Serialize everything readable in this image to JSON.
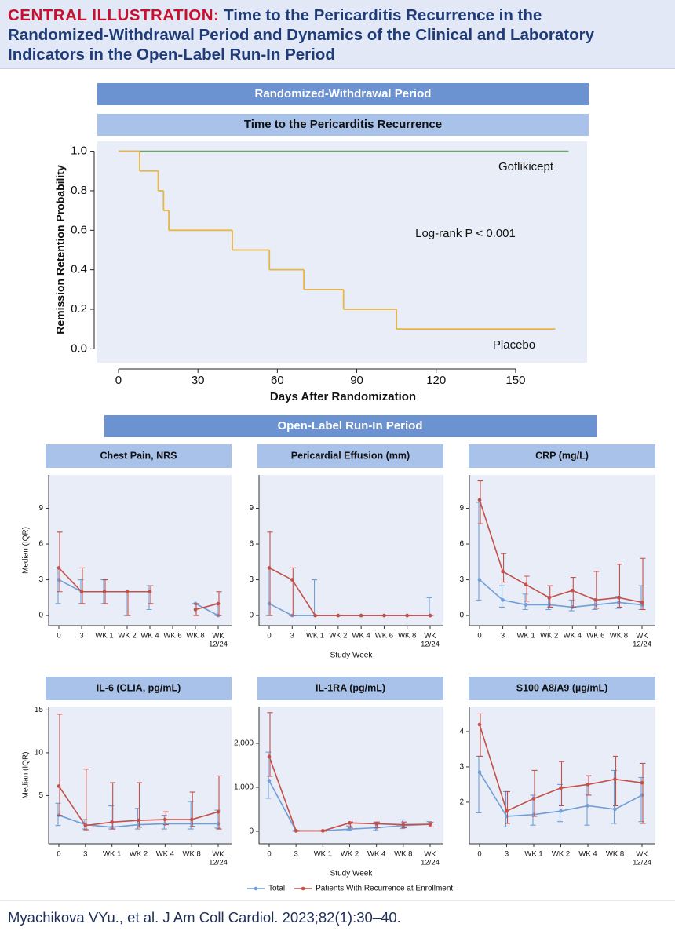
{
  "header": {
    "label": "CENTRAL ILLUSTRATION:",
    "title": "Time to the Pericarditis Recurrence in the Randomized-Withdrawal Period and Dynamics of the Clinical and Laboratory Indicators in the Open-Label Run-In Period"
  },
  "sections": [
    "Randomized-Withdrawal Period",
    "Open-Label Run-In Period"
  ],
  "citation": "Myachikova VYu., et al. J Am Coll Cardiol. 2023;82(1):30–40.",
  "chart_data": [
    {
      "type": "step",
      "title": "Time to the Pericarditis Recurrence",
      "x_label": "Days After Randomization",
      "y_label": "Remission Retention Probability",
      "annotation": "Log-rank P < 0.001",
      "xlim": [
        -8,
        177
      ],
      "xticks": [
        0,
        30,
        60,
        90,
        120,
        150
      ],
      "ylim": [
        -0.07,
        1.05
      ],
      "yticks": [
        {
          "value": 0,
          "label": "0.0"
        },
        {
          "value": 0.2,
          "label": "0.2"
        },
        {
          "value": 0.4,
          "label": "0.4"
        },
        {
          "value": 0.6,
          "label": "0.6"
        },
        {
          "value": 0.8,
          "label": "0.8"
        },
        {
          "value": 1,
          "label": "1.0"
        }
      ],
      "series": [
        {
          "name": "Goflikicept",
          "color": "#6aa86a",
          "x": [
            0,
            170
          ],
          "values": [
            1,
            1
          ]
        },
        {
          "name": "Placebo",
          "color": "#e8b547",
          "x": [
            0,
            8,
            15,
            17,
            19,
            43,
            57,
            70,
            85,
            105,
            165
          ],
          "values": [
            1,
            0.9,
            0.8,
            0.7,
            0.6,
            0.5,
            0.4,
            0.3,
            0.2,
            0.1,
            0.1
          ]
        }
      ]
    },
    {
      "type": "line",
      "title": "Chest Pain, NRS",
      "y_label": "Median (IQR)",
      "categories": [
        "0",
        "3",
        "WK 1",
        "WK 2",
        "WK 4",
        "WK 6",
        "WK 8",
        "WK 12/24"
      ],
      "ylim": [
        -0.85,
        11.8
      ],
      "yticks": [
        0,
        3,
        6,
        9
      ],
      "series": [
        {
          "name": "Total",
          "color": "#6f9fd6",
          "values": [
            3,
            2,
            2,
            2,
            2,
            null,
            1,
            0
          ],
          "lower": [
            1,
            1,
            1,
            0,
            0.5,
            null,
            1,
            0
          ],
          "upper": [
            4,
            3,
            3,
            2,
            2.5,
            null,
            1,
            1
          ]
        },
        {
          "name": "Patients With Recurrence at Enrollment",
          "color": "#c4504a",
          "values": [
            4,
            2,
            2,
            2,
            2,
            null,
            0.5,
            1
          ],
          "lower": [
            2,
            1,
            1,
            0,
            1,
            null,
            0,
            0
          ],
          "upper": [
            7,
            4,
            3,
            2,
            2.5,
            null,
            1,
            2
          ]
        }
      ]
    },
    {
      "type": "line",
      "title": "Pericardial Effusion (mm)",
      "x_label": "Study Week",
      "categories": [
        "0",
        "3",
        "WK 1",
        "WK 2",
        "WK 4",
        "WK 6",
        "WK 8",
        "WK 12/24"
      ],
      "ylim": [
        -0.85,
        11.8
      ],
      "yticks": [
        0,
        3,
        6,
        9
      ],
      "series": [
        {
          "name": "Total",
          "color": "#6f9fd6",
          "values": [
            1,
            0,
            0,
            0,
            0,
            0,
            0,
            0
          ],
          "lower": [
            0,
            0,
            0,
            0,
            0,
            0,
            0,
            0
          ],
          "upper": [
            4,
            0,
            3,
            0,
            0,
            0,
            0,
            1.5
          ]
        },
        {
          "name": "Patients With Recurrence at Enrollment",
          "color": "#c4504a",
          "values": [
            4,
            3,
            0,
            0,
            0,
            0,
            0,
            0
          ],
          "lower": [
            0,
            0,
            0,
            0,
            0,
            0,
            0,
            0
          ],
          "upper": [
            7,
            4,
            0,
            0,
            0,
            0,
            0,
            0
          ]
        }
      ]
    },
    {
      "type": "line",
      "title": "CRP (mg/L)",
      "categories": [
        "0",
        "3",
        "WK 1",
        "WK 2",
        "WK 4",
        "WK 6",
        "WK 8",
        "WK 12/24"
      ],
      "ylim": [
        -0.85,
        11.8
      ],
      "yticks": [
        0,
        3,
        6,
        9
      ],
      "series": [
        {
          "name": "Total",
          "color": "#6f9fd6",
          "values": [
            3,
            1.3,
            0.9,
            0.9,
            0.7,
            0.9,
            1.1,
            0.9
          ],
          "lower": [
            1.3,
            0.7,
            0.5,
            0.5,
            0.4,
            0.5,
            0.6,
            0.5
          ],
          "upper": [
            9.5,
            2.5,
            1.8,
            1.6,
            1.3,
            1.4,
            1.6,
            2.5
          ]
        },
        {
          "name": "Patients With Recurrence at Enrollment",
          "color": "#c4504a",
          "values": [
            9.7,
            3.7,
            2.6,
            1.5,
            2.1,
            1.3,
            1.5,
            1.1
          ],
          "lower": [
            7.7,
            2.8,
            1.2,
            0.7,
            0.7,
            0.6,
            0.7,
            0.5
          ],
          "upper": [
            11.3,
            5.2,
            3.3,
            2.5,
            3.2,
            3.7,
            4.3,
            4.8
          ]
        }
      ]
    },
    {
      "type": "line",
      "title": "IL-6 (CLIA, pg/mL)",
      "y_label": "Median (IQR)",
      "categories": [
        "0",
        "3",
        "WK 1",
        "WK 2",
        "WK 4",
        "WK 8",
        "WK 12/24"
      ],
      "ylim": [
        -0.64,
        15.4
      ],
      "yticks": [
        5,
        10,
        15
      ],
      "series": [
        {
          "name": "Total",
          "color": "#6f9fd6",
          "values": [
            2.7,
            1.6,
            1.3,
            1.6,
            1.7,
            1.7,
            1.7
          ],
          "lower": [
            1.5,
            1.1,
            1.1,
            1.1,
            1.1,
            1.1,
            1.2
          ],
          "upper": [
            4.1,
            2.2,
            3.8,
            3.5,
            2.7,
            4.3,
            3.3
          ]
        },
        {
          "name": "Patients With Recurrence at Enrollment",
          "color": "#c4504a",
          "values": [
            6.1,
            1.5,
            1.9,
            2.1,
            2.2,
            2.2,
            3.1
          ],
          "lower": [
            2.7,
            1,
            1.1,
            1.3,
            1.6,
            1.4,
            1.1
          ],
          "upper": [
            14.5,
            8.1,
            6.5,
            6.5,
            3.1,
            5.4,
            7.3
          ]
        }
      ]
    },
    {
      "type": "line",
      "title": "IL-1RA (pg/mL)",
      "x_label": "Study Week",
      "categories": [
        "0",
        "3",
        "WK 1",
        "WK 2",
        "WK 4",
        "WK 8",
        "WK 12/24"
      ],
      "ylim": [
        -286,
        2840
      ],
      "yticks": [
        0,
        {
          "value": 1000,
          "label": "1,000"
        },
        {
          "value": 2000,
          "label": "2,000"
        }
      ],
      "series": [
        {
          "name": "Total",
          "color": "#6f9fd6",
          "values": [
            1150,
            10,
            10,
            50,
            80,
            130,
            160
          ],
          "lower": [
            750,
            0,
            0,
            20,
            20,
            60,
            100
          ],
          "upper": [
            1800,
            20,
            20,
            120,
            200,
            260,
            220
          ]
        },
        {
          "name": "Patients With Recurrence at Enrollment",
          "color": "#c4504a",
          "values": [
            1700,
            10,
            10,
            190,
            170,
            150,
            160
          ],
          "lower": [
            1250,
            0,
            0,
            90,
            80,
            80,
            100
          ],
          "upper": [
            2700,
            20,
            20,
            210,
            210,
            210,
            200
          ]
        }
      ]
    },
    {
      "type": "line",
      "title": "S100 A8/A9 (µg/mL)",
      "categories": [
        "0",
        "3",
        "WK 1",
        "WK 2",
        "WK 4",
        "WK 8",
        "WK 12/24"
      ],
      "ylim": [
        0.82,
        4.71
      ],
      "yticks": [
        2,
        3,
        4
      ],
      "series": [
        {
          "name": "Total",
          "color": "#6f9fd6",
          "values": [
            2.85,
            1.6,
            1.65,
            1.75,
            1.9,
            1.8,
            2.2
          ],
          "lower": [
            1.7,
            1.3,
            1.35,
            1.45,
            1.35,
            1.4,
            1.45
          ],
          "upper": [
            3.3,
            2.3,
            2.2,
            2.5,
            2.5,
            2.9,
            2.7
          ]
        },
        {
          "name": "Patients With Recurrence at Enrollment",
          "color": "#c4504a",
          "values": [
            4.2,
            1.75,
            2.1,
            2.4,
            2.5,
            2.65,
            2.55
          ],
          "lower": [
            3.3,
            1.4,
            1.6,
            1.9,
            2.2,
            1.9,
            1.4
          ],
          "upper": [
            4.5,
            2.3,
            2.9,
            3.15,
            2.75,
            3.3,
            3.1
          ]
        }
      ]
    }
  ]
}
